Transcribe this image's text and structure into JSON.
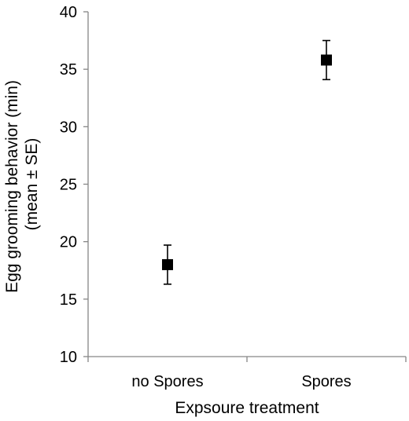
{
  "chart_data": {
    "type": "scatter",
    "xlabel": "Expsoure treatment",
    "ylabel": [
      "Egg grooming behavior (min)",
      "(mean ± SE)"
    ],
    "ylim": [
      10,
      40
    ],
    "y_ticks": [
      10,
      15,
      20,
      25,
      30,
      35,
      40
    ],
    "categories": [
      "no Spores",
      "Spores"
    ],
    "series": [
      {
        "values": [
          18.0,
          35.8
        ],
        "error": [
          1.7,
          1.7
        ],
        "marker": "square",
        "color": "#000000"
      }
    ],
    "grid": false,
    "legend": "none"
  }
}
